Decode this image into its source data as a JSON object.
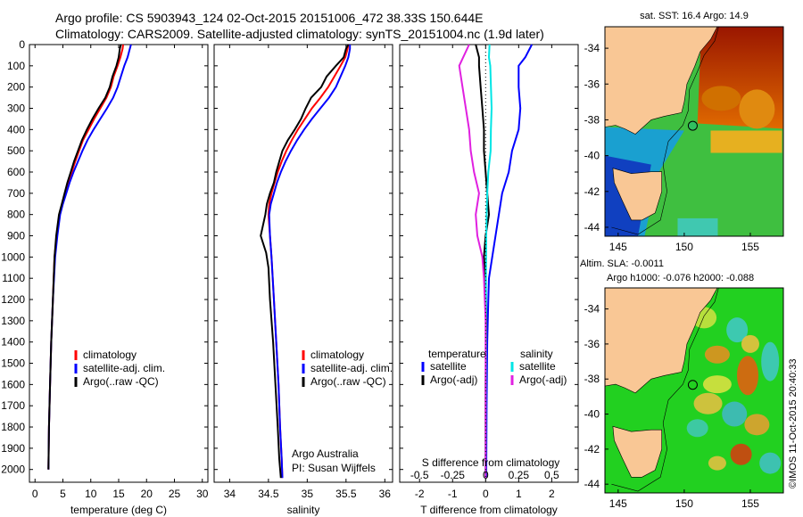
{
  "title": {
    "line1": "Argo profile: CS 5903943_124 02-Oct-2015 20151006_472 38.33S 150.644E",
    "line2": "Climatology: CARS2009. Satellite-adjusted climatology: synTS_20151004.nc (1.9d later)"
  },
  "colors": {
    "climatology": "#ff0000",
    "satellite": "#0000ff",
    "argo": "#000000",
    "sat_salinity": "#00e5e5",
    "argo_salinity": "#e020e0"
  },
  "depth_axis": {
    "ticks": [
      0,
      100,
      200,
      300,
      400,
      500,
      600,
      700,
      800,
      900,
      1000,
      1100,
      1200,
      1300,
      1400,
      1500,
      1600,
      1700,
      1800,
      1900,
      2000
    ],
    "max": 2060
  },
  "chart_data": [
    {
      "type": "line",
      "id": "temperature",
      "xlabel": "temperature (deg C)",
      "xlim": [
        -1,
        31
      ],
      "xticks": [
        0,
        5,
        10,
        15,
        20,
        25,
        30
      ],
      "ylim": [
        0,
        2060
      ],
      "series": [
        {
          "name": "climatology",
          "color": "#ff0000",
          "x": [
            15.8,
            15.7,
            15.3,
            14.8,
            14.1,
            13.6,
            12.8,
            11.7,
            10.6,
            9.6,
            8.6,
            7.9,
            7.2,
            6.6,
            6.0,
            5.5,
            4.9,
            4.4,
            3.9,
            3.5,
            3.2,
            2.9,
            2.7,
            2.5,
            2.4
          ],
          "y": [
            0,
            20,
            60,
            100,
            150,
            200,
            250,
            300,
            350,
            400,
            450,
            500,
            550,
            600,
            650,
            700,
            750,
            800,
            900,
            1000,
            1200,
            1400,
            1600,
            1800,
            2000
          ]
        },
        {
          "name": "satellite-adj. clim.",
          "color": "#0000ff",
          "x": [
            17.2,
            17.0,
            16.6,
            16.0,
            15.4,
            14.8,
            14.0,
            12.9,
            11.7,
            10.5,
            9.4,
            8.5,
            7.7,
            6.9,
            6.2,
            5.6,
            5.0,
            4.5,
            4.0,
            3.6,
            3.2,
            2.9,
            2.7,
            2.5,
            2.4
          ],
          "y": [
            0,
            20,
            60,
            100,
            150,
            200,
            250,
            300,
            350,
            400,
            450,
            500,
            550,
            600,
            650,
            700,
            750,
            800,
            900,
            1000,
            1200,
            1400,
            1600,
            1800,
            2000
          ]
        },
        {
          "name": "Argo(..raw -QC)",
          "color": "#000000",
          "x": [
            15.4,
            15.2,
            15.0,
            14.6,
            13.9,
            13.4,
            12.6,
            11.4,
            10.3,
            9.3,
            8.4,
            7.7,
            7.0,
            6.4,
            5.8,
            5.3,
            4.8,
            4.3,
            3.8,
            3.5,
            3.2,
            2.9,
            2.7,
            2.5,
            2.4
          ],
          "y": [
            0,
            20,
            60,
            100,
            150,
            200,
            250,
            300,
            350,
            400,
            450,
            500,
            550,
            600,
            650,
            700,
            750,
            800,
            900,
            1000,
            1200,
            1400,
            1600,
            1800,
            2000
          ]
        }
      ],
      "legend": [
        "climatology",
        "satellite-adj. clim.",
        "Argo(..raw -QC)"
      ]
    },
    {
      "type": "line",
      "id": "salinity",
      "xlabel": "salinity",
      "xlim": [
        33.8,
        36.1
      ],
      "xticks": [
        34,
        34.5,
        35,
        35.5,
        36
      ],
      "ylim": [
        0,
        2060
      ],
      "series": [
        {
          "name": "climatology",
          "color": "#ff0000",
          "x": [
            35.53,
            35.52,
            35.49,
            35.43,
            35.35,
            35.27,
            35.17,
            35.06,
            34.97,
            34.88,
            34.8,
            34.73,
            34.67,
            34.62,
            34.58,
            34.54,
            34.51,
            34.5,
            34.52,
            34.54,
            34.57,
            34.6,
            34.63,
            34.65,
            34.67,
            34.68
          ],
          "y": [
            0,
            20,
            60,
            100,
            150,
            200,
            250,
            300,
            350,
            400,
            450,
            500,
            550,
            600,
            650,
            700,
            750,
            800,
            900,
            1000,
            1200,
            1400,
            1600,
            1800,
            1950,
            2040
          ]
        },
        {
          "name": "satellite-adj. clim.",
          "color": "#0000ff",
          "x": [
            35.55,
            35.55,
            35.53,
            35.49,
            35.43,
            35.37,
            35.28,
            35.17,
            35.06,
            34.96,
            34.87,
            34.79,
            34.72,
            34.66,
            34.61,
            34.57,
            34.53,
            34.51,
            34.52,
            34.54,
            34.57,
            34.6,
            34.63,
            34.65,
            34.67,
            34.68
          ],
          "y": [
            0,
            20,
            60,
            100,
            150,
            200,
            250,
            300,
            350,
            400,
            450,
            500,
            550,
            600,
            650,
            700,
            750,
            800,
            900,
            1000,
            1200,
            1400,
            1600,
            1800,
            1950,
            2040
          ]
        },
        {
          "name": "Argo(..raw -QC)",
          "color": "#000000",
          "x": [
            35.53,
            35.5,
            35.47,
            35.37,
            35.25,
            35.18,
            35.05,
            34.98,
            34.92,
            34.84,
            34.75,
            34.68,
            34.64,
            34.6,
            34.57,
            34.52,
            34.48,
            34.46,
            34.4,
            34.47,
            34.5,
            34.52,
            34.56,
            34.59,
            34.62,
            34.64,
            34.66
          ],
          "y": [
            0,
            20,
            60,
            100,
            150,
            200,
            250,
            300,
            350,
            400,
            450,
            500,
            550,
            600,
            650,
            700,
            750,
            800,
            900,
            980,
            1050,
            1200,
            1400,
            1600,
            1800,
            1950,
            2040
          ]
        }
      ],
      "legend": [
        "climatology",
        "satellite-adj. clim.",
        "Argo(..raw -QC)"
      ],
      "annotation": [
        "Argo Australia",
        "PI: Susan Wijffels"
      ]
    },
    {
      "type": "line",
      "id": "difference",
      "xlabel": "T difference from climatology",
      "xlabel_top": "S difference from climatology",
      "xlim": [
        -2.6,
        2.8
      ],
      "xticks": [
        -2,
        -1,
        0,
        1,
        2
      ],
      "xtick_labels_top": [
        "-0.5",
        "-0.25",
        "0",
        "0.25",
        "0.5"
      ],
      "xticks_top_T_units": [
        -2,
        -1,
        0,
        1,
        2
      ],
      "ylim": [
        0,
        2060
      ],
      "series": [
        {
          "name": "temperature satellite",
          "color": "#0000ff",
          "x": [
            1.4,
            1.2,
            1.0,
            1.0,
            1.05,
            1.0,
            0.9,
            0.8,
            0.7,
            0.5,
            0.4,
            0.3,
            0.2,
            0.1,
            0.08,
            0.05,
            0.03,
            0.02
          ],
          "y": [
            0,
            60,
            100,
            200,
            300,
            400,
            450,
            500,
            600,
            700,
            800,
            900,
            1000,
            1100,
            1200,
            1400,
            1700,
            2040
          ]
        },
        {
          "name": "temperature Argo(-adj)",
          "color": "#000000",
          "x": [
            -0.3,
            -0.2,
            -0.2,
            -0.15,
            -0.1,
            -0.05,
            -0.05,
            0.0,
            0.05,
            0.1,
            0.0,
            -0.05,
            0.0,
            0.02,
            0.0,
            0.0
          ],
          "y": [
            0,
            60,
            100,
            200,
            300,
            400,
            500,
            600,
            700,
            800,
            900,
            1000,
            1100,
            1300,
            1600,
            2040
          ]
        },
        {
          "name": "salinity satellite",
          "color": "#00e5e5",
          "x": [
            0.12,
            0.1,
            0.14,
            0.18,
            0.16,
            0.15,
            0.08,
            0.05,
            0.03,
            0.02,
            0.01,
            0.01,
            0.0
          ],
          "y": [
            0,
            60,
            100,
            300,
            400,
            500,
            600,
            700,
            800,
            900,
            1100,
            1400,
            2040
          ]
        },
        {
          "name": "salinity Argo(-adj)",
          "color": "#e020e0",
          "x": [
            -0.5,
            -0.8,
            -0.7,
            -0.6,
            -0.5,
            -0.45,
            -0.35,
            -0.2,
            -0.3,
            -0.25,
            -0.1,
            -0.05,
            0.0,
            0.0
          ],
          "y": [
            0,
            100,
            200,
            300,
            400,
            500,
            600,
            700,
            800,
            900,
            1000,
            1100,
            1300,
            2040
          ]
        }
      ],
      "legend_titles": [
        "temperature",
        "salinity"
      ],
      "legend": [
        "satellite",
        "Argo(-adj)",
        "satellite",
        "Argo(-adj)"
      ]
    },
    {
      "type": "heatmap",
      "id": "sst_map",
      "title": "sat. SST: 16.4  Argo: 14.9",
      "xlim": [
        144,
        157.5
      ],
      "ylim": [
        -44.5,
        -32.8
      ],
      "xticks": [
        145,
        150,
        155
      ],
      "yticks": [
        -34,
        -36,
        -38,
        -40,
        -42,
        -44
      ],
      "float_position": [
        150.644,
        -38.33
      ]
    },
    {
      "type": "heatmap",
      "id": "sla_map",
      "title": "Altim. SLA: -0.0011",
      "subtitle": "Argo h1000: -0.076 h2000: -0.088",
      "xlim": [
        144,
        157.5
      ],
      "ylim": [
        -44.5,
        -32.8
      ],
      "xticks": [
        145,
        150,
        155
      ],
      "yticks": [
        -34,
        -36,
        -38,
        -40,
        -42,
        -44
      ],
      "float_position": [
        150.644,
        -38.33
      ]
    }
  ],
  "credit": "©IMOS 11-Oct-2015 20:40:33"
}
